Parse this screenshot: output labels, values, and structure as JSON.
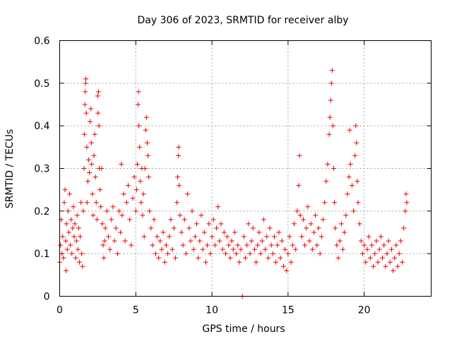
{
  "chart_data": {
    "type": "scatter",
    "title": "Day 306 of 2023, SRMTID for receiver alby",
    "xlabel": "GPS time / hours",
    "ylabel": "SRMTID / TECUs",
    "xlim": [
      0,
      24.4
    ],
    "ylim": [
      0,
      0.6
    ],
    "xticks": [
      0,
      5,
      10,
      15,
      20
    ],
    "xtick_labels": [
      "0",
      "5",
      "10",
      "15",
      "20"
    ],
    "yticks": [
      0,
      0.1,
      0.2,
      0.3,
      0.4,
      0.5,
      0.6
    ],
    "ytick_labels": [
      "0",
      "0.1",
      "0.2",
      "0.3",
      "0.4",
      "0.5",
      "0.6"
    ],
    "grid": true,
    "marker": "+",
    "color": "#ee0000",
    "series": [
      {
        "name": "SRMTID",
        "points": [
          [
            0.0,
            0.08
          ],
          [
            0.05,
            0.12
          ],
          [
            0.1,
            0.18
          ],
          [
            0.15,
            0.1
          ],
          [
            0.2,
            0.14
          ],
          [
            0.25,
            0.09
          ],
          [
            0.3,
            0.22
          ],
          [
            0.35,
            0.25
          ],
          [
            0.4,
            0.13
          ],
          [
            0.42,
            0.06
          ],
          [
            0.45,
            0.17
          ],
          [
            0.5,
            0.11
          ],
          [
            0.55,
            0.2
          ],
          [
            0.6,
            0.15
          ],
          [
            0.65,
            0.24
          ],
          [
            0.7,
            0.12
          ],
          [
            0.75,
            0.18
          ],
          [
            0.8,
            0.1
          ],
          [
            0.85,
            0.16
          ],
          [
            0.9,
            0.21
          ],
          [
            0.95,
            0.14
          ],
          [
            1.0,
            0.17
          ],
          [
            1.05,
            0.09
          ],
          [
            1.1,
            0.13
          ],
          [
            1.15,
            0.19
          ],
          [
            1.2,
            0.11
          ],
          [
            1.25,
            0.16
          ],
          [
            1.3,
            0.08
          ],
          [
            1.35,
            0.14
          ],
          [
            1.4,
            0.22
          ],
          [
            1.45,
            0.1
          ],
          [
            1.5,
            0.07
          ],
          [
            1.55,
            0.2
          ],
          [
            1.6,
            0.3
          ],
          [
            1.62,
            0.38
          ],
          [
            1.65,
            0.45
          ],
          [
            1.68,
            0.48
          ],
          [
            1.7,
            0.5
          ],
          [
            1.72,
            0.51
          ],
          [
            1.75,
            0.43
          ],
          [
            1.78,
            0.35
          ],
          [
            1.8,
            0.22
          ],
          [
            1.85,
            0.27
          ],
          [
            1.9,
            0.32
          ],
          [
            1.95,
            0.29
          ],
          [
            2.0,
            0.41
          ],
          [
            2.05,
            0.44
          ],
          [
            2.08,
            0.36
          ],
          [
            2.1,
            0.31
          ],
          [
            2.15,
            0.24
          ],
          [
            2.2,
            0.19
          ],
          [
            2.25,
            0.33
          ],
          [
            2.3,
            0.38
          ],
          [
            2.35,
            0.28
          ],
          [
            2.4,
            0.22
          ],
          [
            2.45,
            0.18
          ],
          [
            2.5,
            0.47
          ],
          [
            2.52,
            0.43
          ],
          [
            2.55,
            0.48
          ],
          [
            2.58,
            0.4
          ],
          [
            2.6,
            0.3
          ],
          [
            2.65,
            0.25
          ],
          [
            2.7,
            0.21
          ],
          [
            2.75,
            0.3
          ],
          [
            2.8,
            0.17
          ],
          [
            2.85,
            0.12
          ],
          [
            2.9,
            0.09
          ],
          [
            2.95,
            0.13
          ],
          [
            3.0,
            0.16
          ],
          [
            3.1,
            0.2
          ],
          [
            3.2,
            0.14
          ],
          [
            3.3,
            0.11
          ],
          [
            3.4,
            0.18
          ],
          [
            3.5,
            0.21
          ],
          [
            3.6,
            0.13
          ],
          [
            3.7,
            0.16
          ],
          [
            3.8,
            0.1
          ],
          [
            3.9,
            0.2
          ],
          [
            4.0,
            0.15
          ],
          [
            4.05,
            0.31
          ],
          [
            4.1,
            0.19
          ],
          [
            4.2,
            0.24
          ],
          [
            4.3,
            0.13
          ],
          [
            4.4,
            0.22
          ],
          [
            4.5,
            0.26
          ],
          [
            4.6,
            0.18
          ],
          [
            4.7,
            0.12
          ],
          [
            4.8,
            0.23
          ],
          [
            4.9,
            0.28
          ],
          [
            5.0,
            0.2
          ],
          [
            5.05,
            0.25
          ],
          [
            5.1,
            0.31
          ],
          [
            5.15,
            0.45
          ],
          [
            5.18,
            0.48
          ],
          [
            5.2,
            0.4
          ],
          [
            5.25,
            0.35
          ],
          [
            5.3,
            0.27
          ],
          [
            5.35,
            0.22
          ],
          [
            5.4,
            0.3
          ],
          [
            5.45,
            0.19
          ],
          [
            5.5,
            0.24
          ],
          [
            5.55,
            0.14
          ],
          [
            5.6,
            0.3
          ],
          [
            5.65,
            0.39
          ],
          [
            5.7,
            0.42
          ],
          [
            5.75,
            0.36
          ],
          [
            5.8,
            0.33
          ],
          [
            5.85,
            0.28
          ],
          [
            5.9,
            0.2
          ],
          [
            6.0,
            0.16
          ],
          [
            6.1,
            0.12
          ],
          [
            6.2,
            0.18
          ],
          [
            6.3,
            0.1
          ],
          [
            6.4,
            0.14
          ],
          [
            6.5,
            0.09
          ],
          [
            6.6,
            0.13
          ],
          [
            6.7,
            0.11
          ],
          [
            6.8,
            0.15
          ],
          [
            6.9,
            0.08
          ],
          [
            7.0,
            0.12
          ],
          [
            7.1,
            0.1
          ],
          [
            7.2,
            0.14
          ],
          [
            7.3,
            0.18
          ],
          [
            7.4,
            0.11
          ],
          [
            7.5,
            0.16
          ],
          [
            7.6,
            0.09
          ],
          [
            7.7,
            0.22
          ],
          [
            7.75,
            0.28
          ],
          [
            7.8,
            0.33
          ],
          [
            7.82,
            0.35
          ],
          [
            7.85,
            0.26
          ],
          [
            7.9,
            0.19
          ],
          [
            8.0,
            0.15
          ],
          [
            8.1,
            0.12
          ],
          [
            8.2,
            0.18
          ],
          [
            8.3,
            0.1
          ],
          [
            8.4,
            0.24
          ],
          [
            8.5,
            0.16
          ],
          [
            8.6,
            0.13
          ],
          [
            8.7,
            0.2
          ],
          [
            8.8,
            0.11
          ],
          [
            8.9,
            0.14
          ],
          [
            9.0,
            0.17
          ],
          [
            9.1,
            0.09
          ],
          [
            9.2,
            0.13
          ],
          [
            9.3,
            0.19
          ],
          [
            9.4,
            0.11
          ],
          [
            9.5,
            0.15
          ],
          [
            9.6,
            0.08
          ],
          [
            9.7,
            0.12
          ],
          [
            9.8,
            0.17
          ],
          [
            9.9,
            0.1
          ],
          [
            10.0,
            0.14
          ],
          [
            10.1,
            0.18
          ],
          [
            10.2,
            0.12
          ],
          [
            10.3,
            0.16
          ],
          [
            10.4,
            0.21
          ],
          [
            10.5,
            0.13
          ],
          [
            10.6,
            0.17
          ],
          [
            10.7,
            0.11
          ],
          [
            10.8,
            0.15
          ],
          [
            10.9,
            0.1
          ],
          [
            11.0,
            0.14
          ],
          [
            11.1,
            0.12
          ],
          [
            11.2,
            0.09
          ],
          [
            11.3,
            0.13
          ],
          [
            11.4,
            0.11
          ],
          [
            11.5,
            0.15
          ],
          [
            11.6,
            0.1
          ],
          [
            11.7,
            0.12
          ],
          [
            11.8,
            0.08
          ],
          [
            11.9,
            0.11
          ],
          [
            12.0,
            0.0
          ],
          [
            12.1,
            0.14
          ],
          [
            12.2,
            0.09
          ],
          [
            12.3,
            0.12
          ],
          [
            12.4,
            0.17
          ],
          [
            12.5,
            0.1
          ],
          [
            12.6,
            0.13
          ],
          [
            12.7,
            0.16
          ],
          [
            12.8,
            0.11
          ],
          [
            12.9,
            0.08
          ],
          [
            13.0,
            0.12
          ],
          [
            13.1,
            0.15
          ],
          [
            13.2,
            0.1
          ],
          [
            13.3,
            0.13
          ],
          [
            13.4,
            0.18
          ],
          [
            13.5,
            0.11
          ],
          [
            13.6,
            0.14
          ],
          [
            13.7,
            0.09
          ],
          [
            13.8,
            0.16
          ],
          [
            13.9,
            0.12
          ],
          [
            14.0,
            0.1
          ],
          [
            14.1,
            0.14
          ],
          [
            14.2,
            0.08
          ],
          [
            14.3,
            0.12
          ],
          [
            14.4,
            0.15
          ],
          [
            14.5,
            0.09
          ],
          [
            14.6,
            0.13
          ],
          [
            14.7,
            0.07
          ],
          [
            14.8,
            0.11
          ],
          [
            14.9,
            0.06
          ],
          [
            15.0,
            0.1
          ],
          [
            15.1,
            0.14
          ],
          [
            15.2,
            0.08
          ],
          [
            15.3,
            0.12
          ],
          [
            15.4,
            0.17
          ],
          [
            15.5,
            0.11
          ],
          [
            15.6,
            0.2
          ],
          [
            15.7,
            0.26
          ],
          [
            15.75,
            0.33
          ],
          [
            15.8,
            0.19
          ],
          [
            15.9,
            0.14
          ],
          [
            16.0,
            0.18
          ],
          [
            16.1,
            0.12
          ],
          [
            16.2,
            0.16
          ],
          [
            16.3,
            0.21
          ],
          [
            16.4,
            0.13
          ],
          [
            16.5,
            0.17
          ],
          [
            16.6,
            0.11
          ],
          [
            16.7,
            0.15
          ],
          [
            16.8,
            0.19
          ],
          [
            16.9,
            0.12
          ],
          [
            17.0,
            0.16
          ],
          [
            17.1,
            0.1
          ],
          [
            17.2,
            0.14
          ],
          [
            17.3,
            0.18
          ],
          [
            17.4,
            0.22
          ],
          [
            17.5,
            0.27
          ],
          [
            17.6,
            0.31
          ],
          [
            17.7,
            0.38
          ],
          [
            17.75,
            0.42
          ],
          [
            17.8,
            0.46
          ],
          [
            17.85,
            0.5
          ],
          [
            17.9,
            0.53
          ],
          [
            17.95,
            0.4
          ],
          [
            18.0,
            0.3
          ],
          [
            18.05,
            0.22
          ],
          [
            18.1,
            0.16
          ],
          [
            18.2,
            0.12
          ],
          [
            18.3,
            0.09
          ],
          [
            18.4,
            0.13
          ],
          [
            18.5,
            0.17
          ],
          [
            18.6,
            0.11
          ],
          [
            18.7,
            0.15
          ],
          [
            18.8,
            0.19
          ],
          [
            18.9,
            0.24
          ],
          [
            19.0,
            0.28
          ],
          [
            19.05,
            0.39
          ],
          [
            19.1,
            0.31
          ],
          [
            19.2,
            0.26
          ],
          [
            19.3,
            0.2
          ],
          [
            19.4,
            0.33
          ],
          [
            19.45,
            0.4
          ],
          [
            19.5,
            0.36
          ],
          [
            19.55,
            0.27
          ],
          [
            19.6,
            0.22
          ],
          [
            19.7,
            0.17
          ],
          [
            19.8,
            0.13
          ],
          [
            19.9,
            0.1
          ],
          [
            20.0,
            0.12
          ],
          [
            20.1,
            0.08
          ],
          [
            20.2,
            0.11
          ],
          [
            20.3,
            0.14
          ],
          [
            20.4,
            0.09
          ],
          [
            20.5,
            0.12
          ],
          [
            20.6,
            0.07
          ],
          [
            20.7,
            0.1
          ],
          [
            20.8,
            0.13
          ],
          [
            20.9,
            0.08
          ],
          [
            21.0,
            0.11
          ],
          [
            21.1,
            0.14
          ],
          [
            21.2,
            0.09
          ],
          [
            21.3,
            0.12
          ],
          [
            21.4,
            0.07
          ],
          [
            21.5,
            0.1
          ],
          [
            21.6,
            0.13
          ],
          [
            21.7,
            0.08
          ],
          [
            21.8,
            0.11
          ],
          [
            21.9,
            0.06
          ],
          [
            22.0,
            0.09
          ],
          [
            22.1,
            0.12
          ],
          [
            22.2,
            0.07
          ],
          [
            22.3,
            0.1
          ],
          [
            22.4,
            0.13
          ],
          [
            22.5,
            0.08
          ],
          [
            22.6,
            0.16
          ],
          [
            22.7,
            0.2
          ],
          [
            22.75,
            0.24
          ],
          [
            22.8,
            0.22
          ]
        ]
      }
    ]
  }
}
